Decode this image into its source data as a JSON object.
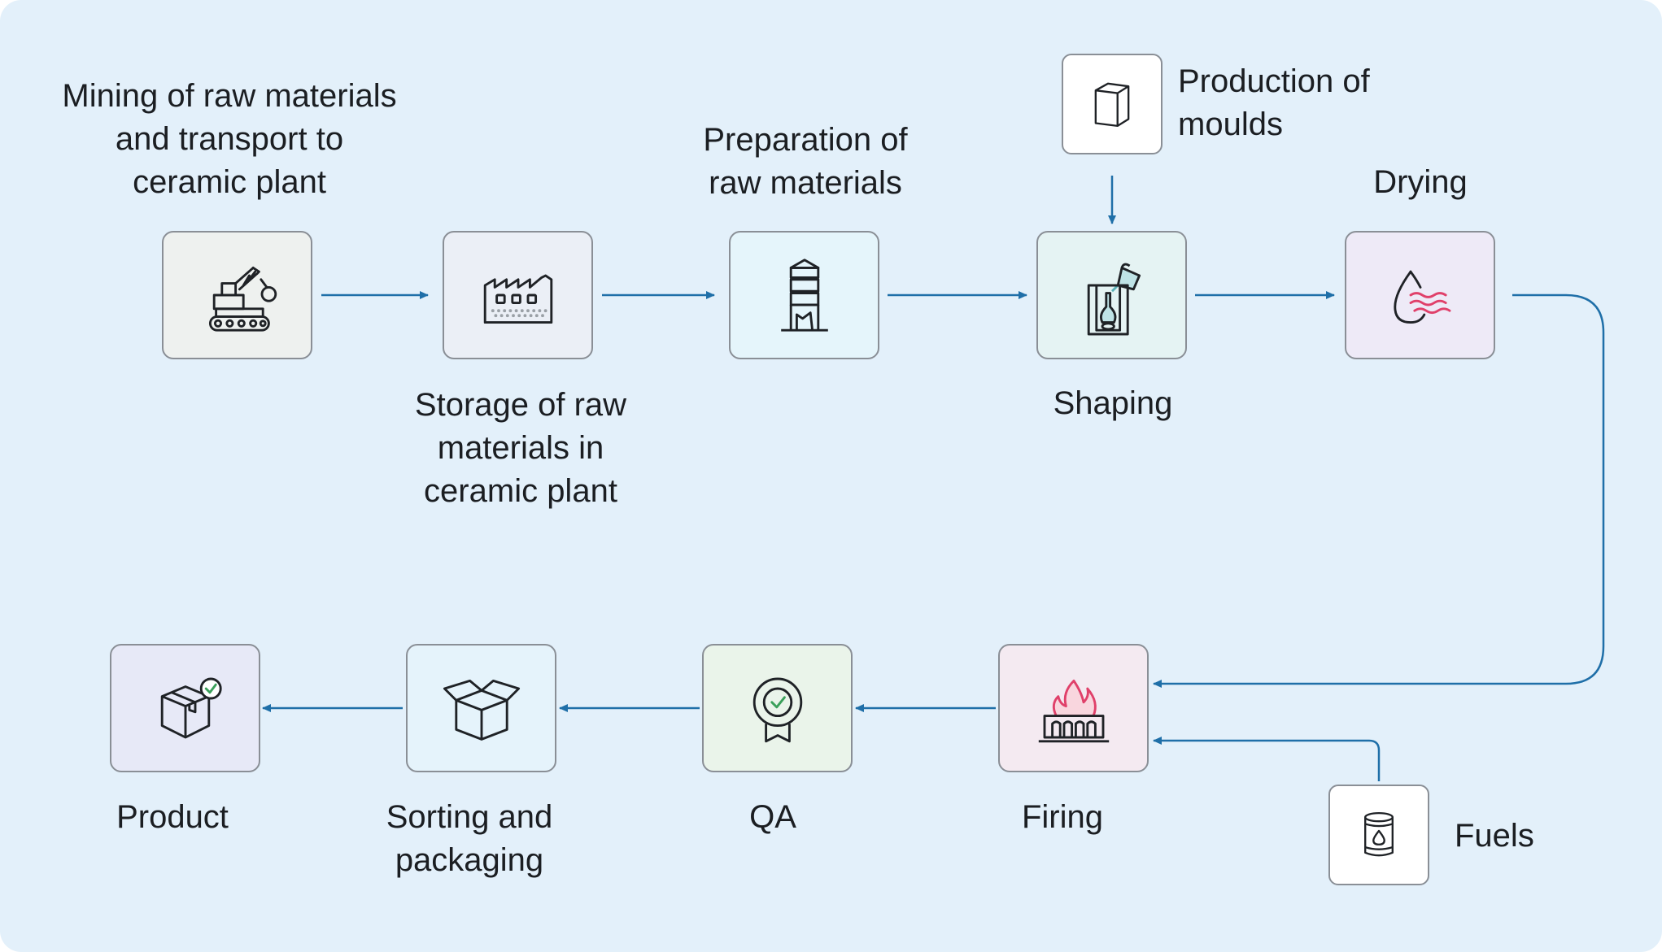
{
  "colors": {
    "background": "#e3f0fa",
    "arrow": "#1f6fa8",
    "box_border": "#8a8f96",
    "icon_stroke": "#1f2226",
    "drying_waves": "#e0406a",
    "check_green": "#3aa05a"
  },
  "steps": [
    {
      "id": "mining",
      "label_lines": [
        "Mining of raw materials",
        "and transport to",
        "ceramic plant"
      ],
      "icon": "excavator-icon",
      "box_color": "#eef1ef"
    },
    {
      "id": "storage",
      "label_lines": [
        "Storage of raw",
        "materials in",
        "ceramic plant"
      ],
      "icon": "factory-icon",
      "box_color": "#ebeff6"
    },
    {
      "id": "preparation",
      "label_lines": [
        "Preparation of",
        "raw materials"
      ],
      "icon": "silo-icon",
      "box_color": "#e5f5fb"
    },
    {
      "id": "shaping",
      "label_lines": [
        "Shaping"
      ],
      "icon": "pouring-mould-icon",
      "box_color": "#e5f3f3"
    },
    {
      "id": "drying",
      "label_lines": [
        "Drying"
      ],
      "icon": "drop-waves-icon",
      "box_color": "#eeeaf7"
    },
    {
      "id": "firing",
      "label_lines": [
        "Firing"
      ],
      "icon": "kiln-fire-icon",
      "box_color": "#f4eaf1"
    },
    {
      "id": "qa",
      "label_lines": [
        "QA"
      ],
      "icon": "award-badge-icon",
      "box_color": "#eaf4ea"
    },
    {
      "id": "sorting",
      "label_lines": [
        "Sorting and",
        "packaging"
      ],
      "icon": "open-box-icon",
      "box_color": "#e5f3fb"
    },
    {
      "id": "product",
      "label_lines": [
        "Product"
      ],
      "icon": "box-check-icon",
      "box_color": "#e7e9f7"
    }
  ],
  "inputs": [
    {
      "id": "moulds",
      "label_lines": [
        "Production of",
        "moulds"
      ],
      "icon": "cube-icon",
      "feeds": "shaping"
    },
    {
      "id": "fuels",
      "label_lines": [
        "Fuels"
      ],
      "icon": "fuel-barrel-icon",
      "feeds": "firing"
    }
  ]
}
